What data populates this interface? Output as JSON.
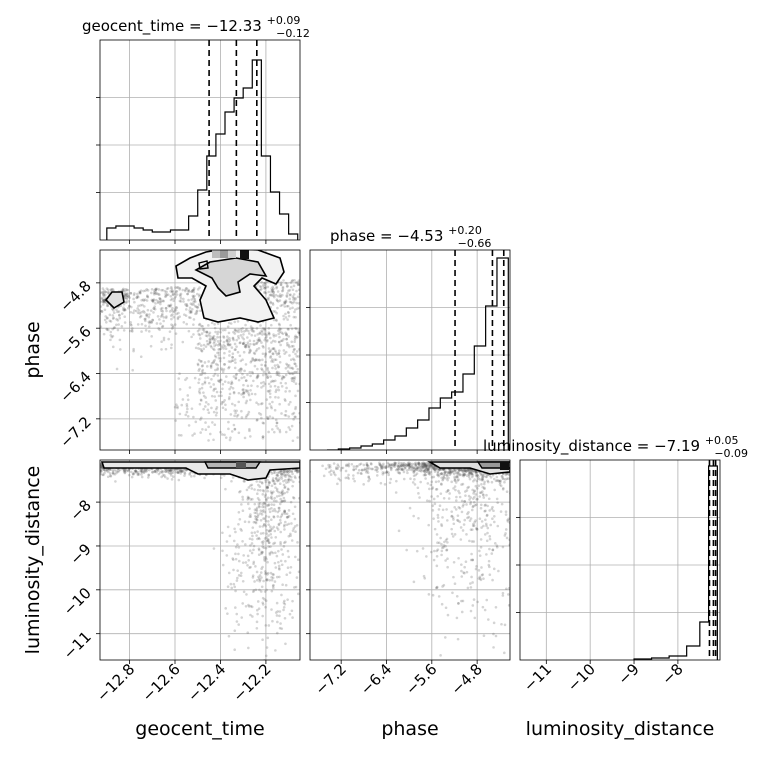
{
  "chart_data": [
    {
      "type": "histogram",
      "panel": "geocent_time-marginal",
      "title": {
        "param": "geocent_time",
        "median": "−12.33",
        "plus": "+0.09",
        "minus": "−0.12"
      },
      "xlim": [
        -12.93,
        -12.05
      ],
      "quantiles": [
        -12.45,
        -12.33,
        -12.24
      ],
      "bin_edges": [
        -12.9,
        -12.86,
        -12.82,
        -12.78,
        -12.74,
        -12.7,
        -12.66,
        -12.62,
        -12.58,
        -12.54,
        -12.5,
        -12.46,
        -12.42,
        -12.38,
        -12.34,
        -12.3,
        -12.26,
        -12.22,
        -12.18,
        -12.14,
        -12.1,
        -12.06
      ],
      "counts": [
        0.06,
        0.07,
        0.07,
        0.06,
        0.05,
        0.04,
        0.04,
        0.05,
        0.05,
        0.12,
        0.25,
        0.42,
        0.53,
        0.64,
        0.71,
        0.76,
        0.9,
        0.42,
        0.24,
        0.13,
        0.03
      ]
    },
    {
      "type": "scatter+contour",
      "panel": "geocent_time-vs-phase",
      "xlabel": "",
      "ylabel": "phase",
      "xlim": [
        -12.93,
        -12.05
      ],
      "ylim": [
        -7.75,
        -4.22
      ],
      "yticks": [
        "−7.2",
        "−6.4",
        "−5.6",
        "−4.8"
      ]
    },
    {
      "type": "histogram",
      "panel": "phase-marginal",
      "title": {
        "param": "phase",
        "median": "−4.53",
        "plus": "+0.20",
        "minus": "−0.66"
      },
      "xlim": [
        -7.75,
        -4.22
      ],
      "quantiles": [
        -5.19,
        -4.53,
        -4.33
      ],
      "bin_edges": [
        -7.45,
        -7.25,
        -7.05,
        -6.85,
        -6.65,
        -6.45,
        -6.25,
        -6.05,
        -5.85,
        -5.65,
        -5.45,
        -5.25,
        -5.05,
        -4.85,
        -4.65,
        -4.45,
        -4.25
      ],
      "counts": [
        0.0,
        0.005,
        0.01,
        0.02,
        0.03,
        0.05,
        0.07,
        0.11,
        0.15,
        0.21,
        0.26,
        0.29,
        0.38,
        0.52,
        0.72,
        0.96
      ]
    },
    {
      "type": "scatter+contour",
      "panel": "geocent_time-vs-luminosity_distance",
      "xlabel": "geocent_time",
      "ylabel": "luminosity_distance",
      "xlim": [
        -12.93,
        -12.05
      ],
      "ylim": [
        -11.6,
        -7.04
      ],
      "xticks": [
        "−12.8",
        "−12.6",
        "−12.4",
        "−12.2"
      ],
      "yticks": [
        "−11",
        "−10",
        "−9",
        "−8"
      ]
    },
    {
      "type": "scatter+contour",
      "panel": "phase-vs-luminosity_distance",
      "xlabel": "phase",
      "xlim": [
        -7.75,
        -4.22
      ],
      "ylim": [
        -11.6,
        -7.04
      ],
      "xticks": [
        "−7.2",
        "−6.4",
        "−5.6",
        "−4.8"
      ]
    },
    {
      "type": "histogram",
      "panel": "luminosity_distance-marginal",
      "title": {
        "param": "luminosity_distance",
        "median": "−7.19",
        "plus": "+0.05",
        "minus": "−0.09"
      },
      "xlabel": "luminosity_distance",
      "xlim": [
        -11.6,
        -7.04
      ],
      "xticks": [
        "−11",
        "−10",
        "−9",
        "−8"
      ],
      "quantiles": [
        -7.28,
        -7.19,
        -7.14
      ],
      "bin_edges": [
        -9.0,
        -8.6,
        -8.2,
        -7.8,
        -7.5,
        -7.3,
        -7.1
      ],
      "counts": [
        0.005,
        0.01,
        0.02,
        0.07,
        0.19,
        0.97
      ]
    }
  ]
}
